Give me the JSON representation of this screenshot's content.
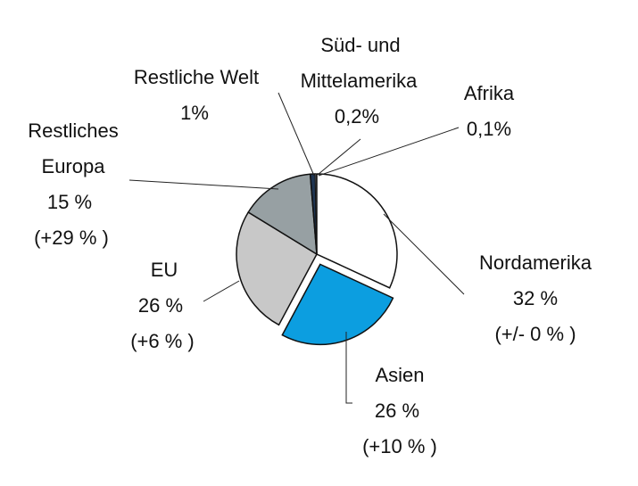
{
  "chart_data": {
    "type": "pie",
    "title": "",
    "slices": [
      {
        "label": "Nordamerika",
        "value": 32,
        "value_text": "32 %",
        "change": "(+/- 0 % )",
        "color": "#ffffff",
        "exploded": false
      },
      {
        "label": "Asien",
        "value": 26,
        "value_text": "26 %",
        "change": "(+10 % )",
        "color": "#0c9ee0",
        "exploded": true
      },
      {
        "label": "EU",
        "value": 26,
        "value_text": "26 %",
        "change": "(+6 % )",
        "color": "#c8c8c8",
        "exploded": false
      },
      {
        "label": "Restliches Europa",
        "label_lines": [
          "Restliches",
          "Europa"
        ],
        "value": 15,
        "value_text": "15 %",
        "change": "(+29 % )",
        "color": "#97a0a3",
        "exploded": false
      },
      {
        "label": "Restliche Welt",
        "value": 1,
        "value_text": "1%",
        "color": "#1f3552",
        "exploded": false
      },
      {
        "label": "Süd- und Mittelamerika",
        "label_lines": [
          "Süd- und",
          "Mittelamerika"
        ],
        "value": 0.2,
        "value_text": "0,2%",
        "color": "#7a7a7a",
        "exploded": false
      },
      {
        "label": "Afrika",
        "value": 0.1,
        "value_text": "0,1%",
        "color": "#3a3a3a",
        "exploded": false
      }
    ],
    "start_angle_deg": 0,
    "direction": "clockwise",
    "legend": "none"
  }
}
